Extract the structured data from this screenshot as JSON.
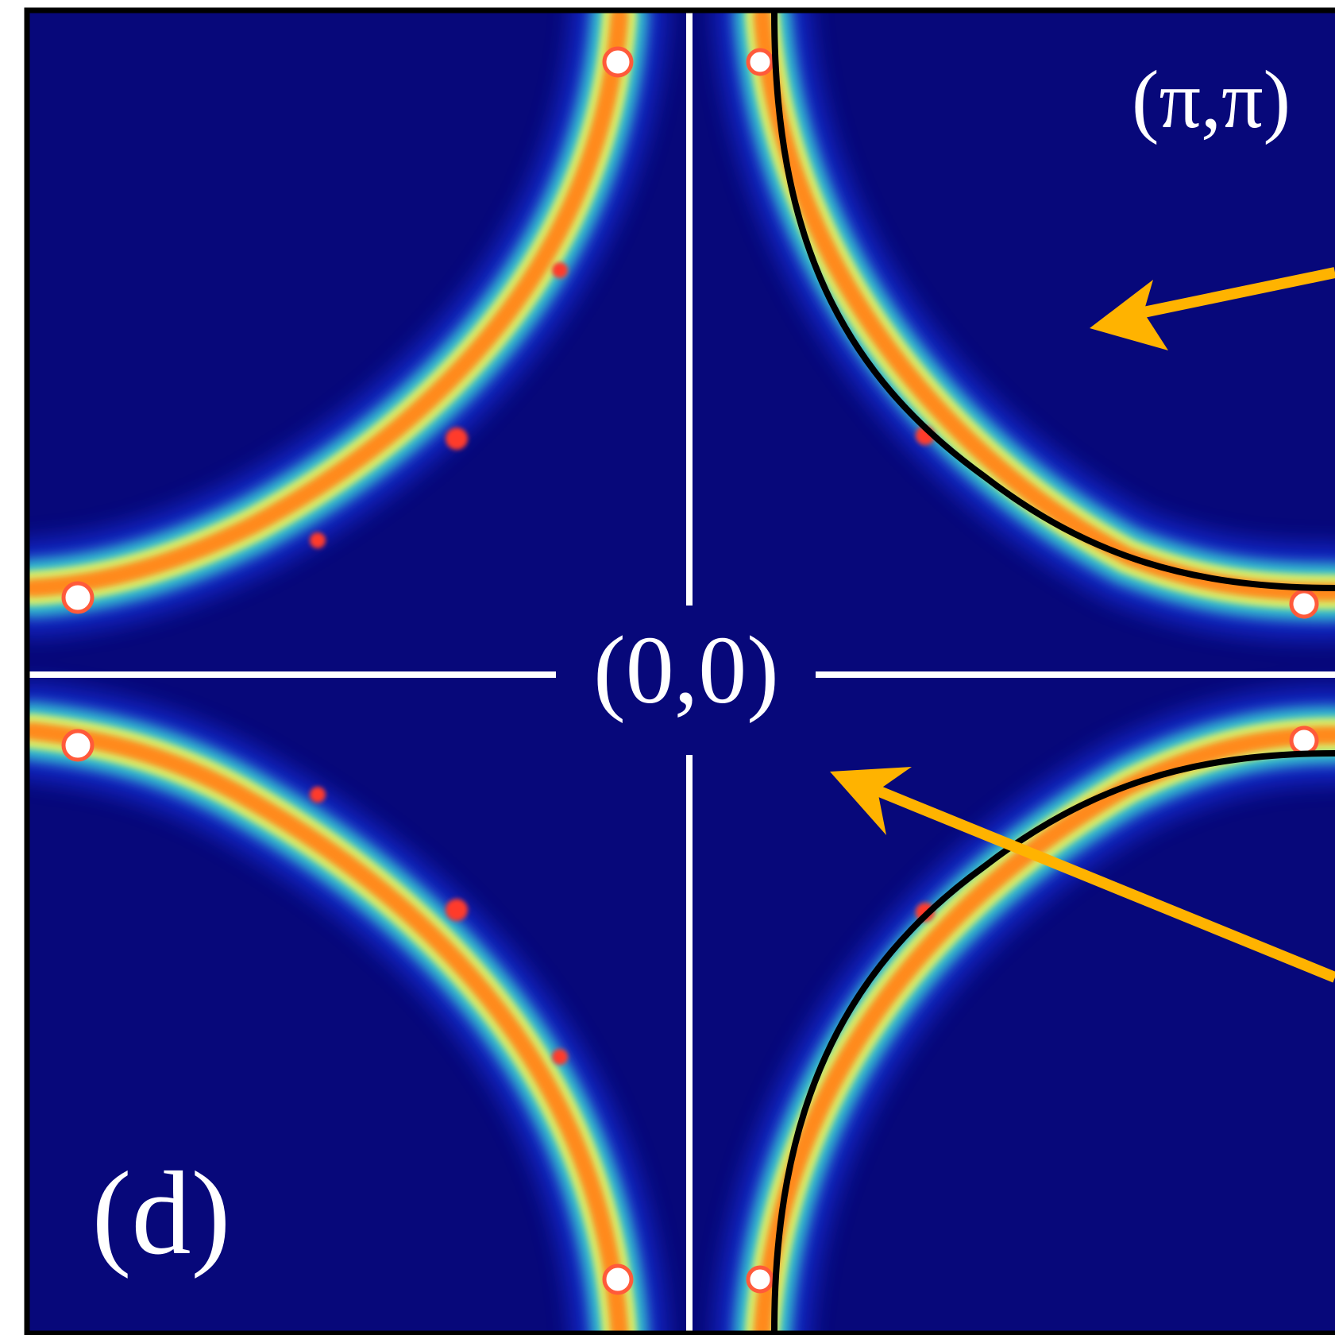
{
  "panel": {
    "label": "(d)",
    "corner_label": "(π,π)",
    "center_label": "(0,0)"
  },
  "colors": {
    "background": "#07087a",
    "frame": "#000000",
    "axes": "#ffffff",
    "curve": "#000000",
    "arrow": "#ffb300",
    "intensity_low": "#1a3cff",
    "intensity_mid": "#3ee0d0",
    "intensity_high": "#ff8a1e",
    "intensity_peak": "#ffffff"
  },
  "colormap": "jet"
}
